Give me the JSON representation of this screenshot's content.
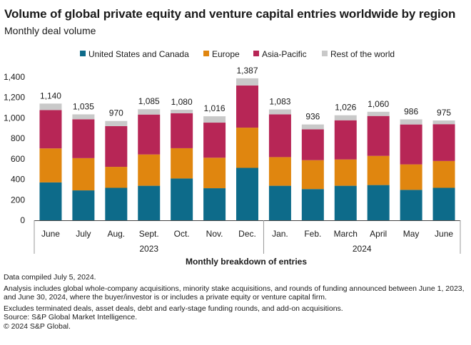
{
  "header": {
    "title": "Volume of global private equity and venture capital entries worldwide by region",
    "subtitle": "Monthly deal volume"
  },
  "chart_data": {
    "type": "bar",
    "stacked": true,
    "categories": [
      "June",
      "July",
      "Aug.",
      "Sept.",
      "Oct.",
      "Nov.",
      "Dec.",
      "Jan.",
      "Feb.",
      "March",
      "April",
      "May",
      "June"
    ],
    "year_groups": [
      {
        "label": "2023",
        "from": 0,
        "to": 6
      },
      {
        "label": "2024",
        "from": 7,
        "to": 12
      }
    ],
    "series": [
      {
        "name": "United States and Canada",
        "color": "#0d6b8a",
        "values": [
          370,
          292,
          317,
          337,
          408,
          313,
          512,
          337,
          305,
          337,
          344,
          297,
          317
        ]
      },
      {
        "name": "Europe",
        "color": "#e0860f",
        "values": [
          332,
          315,
          205,
          306,
          296,
          298,
          393,
          280,
          282,
          257,
          285,
          249,
          262
        ]
      },
      {
        "name": "Asia-Pacific",
        "color": "#b72656",
        "values": [
          375,
          380,
          398,
          390,
          342,
          343,
          412,
          418,
          301,
          383,
          390,
          390,
          360
        ]
      },
      {
        "name": "Rest of the world",
        "color": "#c9c9c9",
        "values": [
          63,
          48,
          50,
          52,
          34,
          62,
          70,
          48,
          48,
          49,
          41,
          50,
          36
        ]
      }
    ],
    "totals": [
      1140,
      1035,
      970,
      1085,
      1080,
      1016,
      1387,
      1083,
      936,
      1026,
      1060,
      986,
      975
    ],
    "total_labels": [
      "1,140",
      "1,035",
      "970",
      "1,085",
      "1,080",
      "1,016",
      "1,387",
      "1,083",
      "936",
      "1,026",
      "1,060",
      "986",
      "975"
    ],
    "ylim": [
      0,
      1400
    ],
    "yticks": [
      0,
      200,
      400,
      600,
      800,
      1000,
      1200,
      1400
    ],
    "ytick_labels": [
      "0",
      "200",
      "400",
      "600",
      "800",
      "1,000",
      "1,200",
      "1,400"
    ],
    "xlabel": "Monthly breakdown of entries",
    "ylabel": "",
    "legend_position": "top-center",
    "grid": false
  },
  "notes": {
    "compiled": "Data compiled July 5, 2024.",
    "analysis": "Analysis includes global whole-company acquisitions, minority stake acquisitions, and rounds of funding announced between June 1, 2023, and June 30, 2024, where the buyer/investor is or includes a private equity or venture capital firm.",
    "excludes": "Excludes terminated deals, asset deals, debt and early-stage funding rounds, and add-on acquisitions.",
    "source": "Source: S&P Global Market Intelligence.",
    "copyright": "© 2024 S&P Global."
  }
}
